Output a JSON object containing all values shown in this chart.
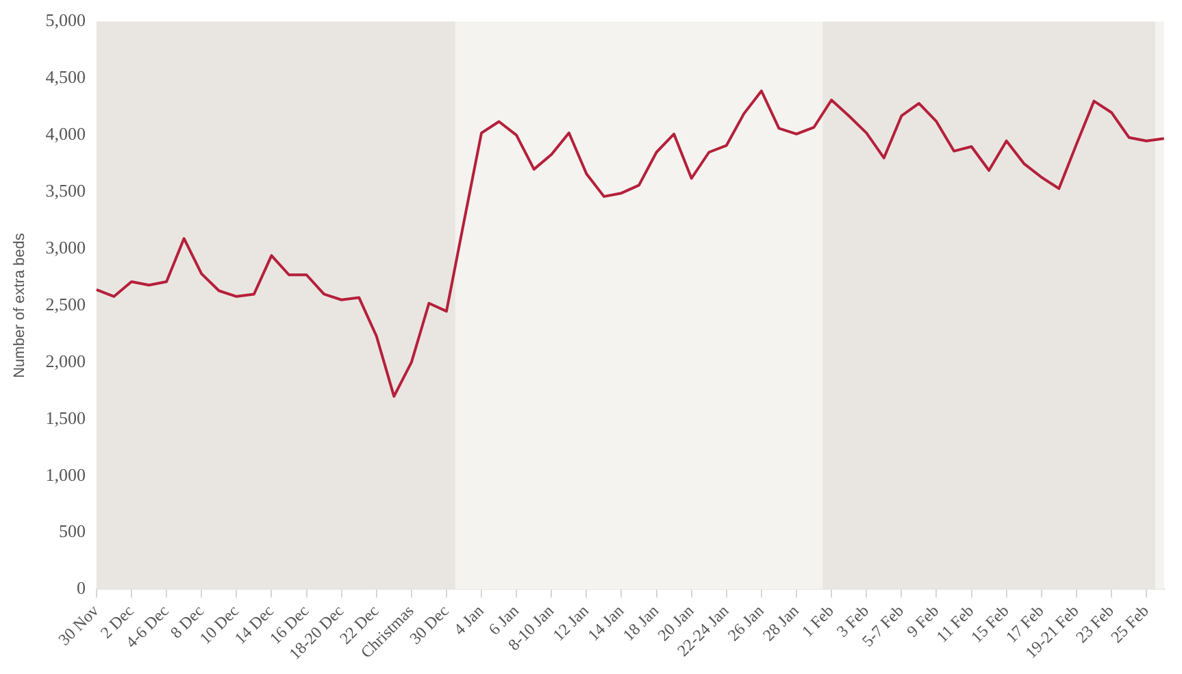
{
  "chart_data": {
    "type": "line",
    "ylabel": "Number of extra beds",
    "categories": [
      "30 Nov",
      null,
      "2 Dec",
      null,
      "4-6 Dec",
      null,
      "8 Dec",
      null,
      "10 Dec",
      null,
      "14 Dec",
      null,
      "16 Dec",
      null,
      "18-20 Dec",
      null,
      "22 Dec",
      null,
      "Christmas",
      null,
      "30 Dec",
      null,
      "4 Jan",
      null,
      "6 Jan",
      null,
      "8-10 Jan",
      null,
      "12 Jan",
      null,
      "14 Jan",
      null,
      "18 Jan",
      null,
      "20 Jan",
      null,
      "22-24 Jan",
      null,
      "26 Jan",
      null,
      "28 Jan",
      null,
      "1 Feb",
      null,
      "3 Feb",
      null,
      "5-7 Feb",
      null,
      "9 Feb",
      null,
      "11 Feb",
      null,
      "15 Feb",
      null,
      "17 Feb",
      null,
      "19-21 Feb",
      null,
      "23 Feb",
      null,
      "25 Feb",
      null
    ],
    "series": [
      {
        "color": "#b5203a",
        "values": [
          2640,
          2580,
          2710,
          2680,
          2710,
          3090,
          2780,
          2630,
          2580,
          2600,
          2940,
          2770,
          2770,
          2600,
          2550,
          2570,
          2230,
          1700,
          2000,
          2520,
          2450,
          3240,
          4020,
          4120,
          4000,
          3700,
          3830,
          4020,
          3660,
          3460,
          3490,
          3560,
          3850,
          4010,
          3620,
          3850,
          3910,
          4190,
          4390,
          4060,
          4010,
          4070,
          4310,
          4170,
          4020,
          3800,
          4170,
          4280,
          4120,
          3860,
          3900,
          3690,
          3950,
          3750,
          3630,
          3530,
          3920,
          4300,
          4200,
          3980,
          3950,
          3970
        ]
      }
    ],
    "ylim": [
      0,
      5000
    ],
    "yticks": [
      0,
      {
        "value": 500,
        "label": "500"
      },
      {
        "value": 1000,
        "label": "1,000"
      },
      {
        "value": 1500,
        "label": "1,500"
      },
      {
        "value": 2000,
        "label": "2,000"
      },
      {
        "value": 2500,
        "label": "2,500"
      },
      {
        "value": 3000,
        "label": "3,000"
      },
      {
        "value": 3500,
        "label": "3,500"
      },
      {
        "value": 4000,
        "label": "4,000"
      },
      {
        "value": 4500,
        "label": "4,500"
      },
      {
        "value": 5000,
        "label": "5,000"
      }
    ],
    "bands": [
      {
        "axis": "x",
        "from": "30 Nov",
        "to": "30 Dec",
        "color": "#e9e6e2"
      },
      {
        "axis": "x",
        "from": "1 Feb",
        "to": "25 Feb",
        "color": "#e9e6e2"
      }
    ],
    "grid": false,
    "legend": false,
    "marker": "none",
    "line_style": "solid"
  }
}
